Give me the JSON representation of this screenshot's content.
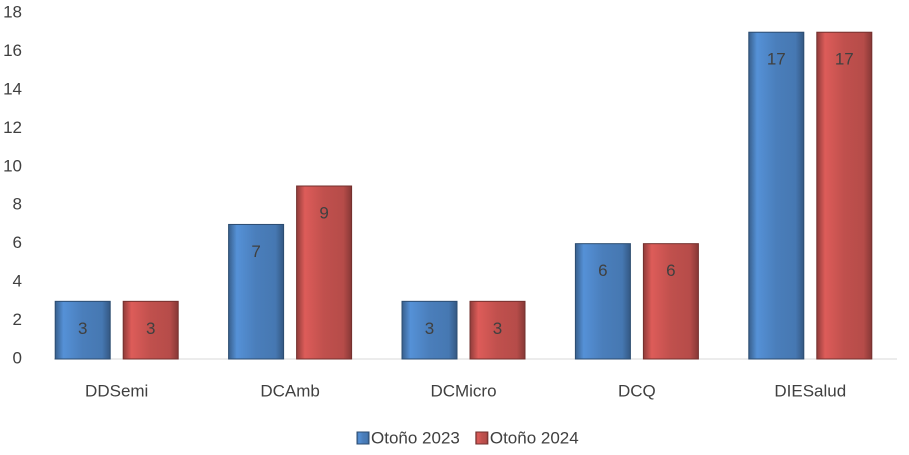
{
  "chart_data": {
    "type": "bar",
    "categories": [
      "DDSemi",
      "DCAmb",
      "DCMicro",
      "DCQ",
      "DIESalud"
    ],
    "series": [
      {
        "name": "Otoño 2023",
        "color": "#4a7ebb",
        "values": [
          3,
          7,
          3,
          6,
          17
        ]
      },
      {
        "name": "Otoño 2024",
        "color": "#c0504d",
        "values": [
          3,
          9,
          3,
          6,
          17
        ]
      }
    ],
    "ylim": [
      0,
      18
    ],
    "yticks": [
      0,
      2,
      4,
      6,
      8,
      10,
      12,
      14,
      16,
      18
    ],
    "grid": false
  }
}
